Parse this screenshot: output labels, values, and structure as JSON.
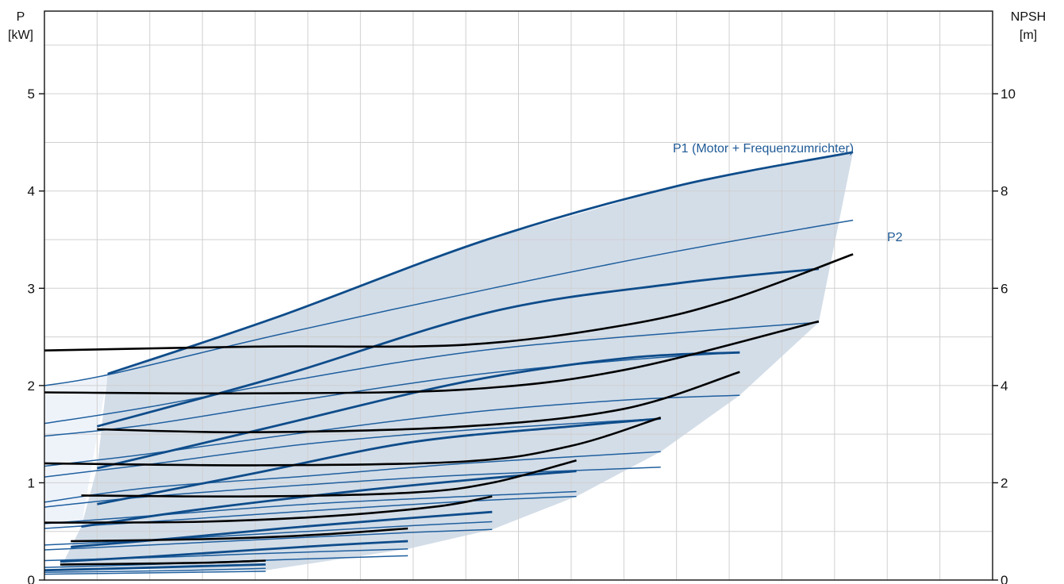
{
  "chart_data": {
    "type": "line",
    "title": "",
    "xlabel": "",
    "left_axis": {
      "label": "P",
      "unit": "[kW]",
      "ylim": [
        0,
        5.85
      ],
      "ticks": [
        "0",
        "1",
        "2",
        "3",
        "4",
        "5"
      ]
    },
    "right_axis": {
      "label": "NPSH",
      "unit": "[m]",
      "ylim": [
        0,
        11.7
      ],
      "ticks": [
        "0",
        "2",
        "4",
        "6",
        "8",
        "10"
      ]
    },
    "xlim": [
      0,
      18
    ],
    "grid": true,
    "legend": "none",
    "annotations": [
      "P1 (Motor + Frequenzumrichter)",
      "P2"
    ],
    "colors": {
      "p1": "#0e4c8a",
      "p2": "#1f5f9e",
      "npsh": "#000000",
      "region": "#d3dde8",
      "region_light": "#eef3fa",
      "grid": "#d0d0d0",
      "label": "#1f5a96"
    },
    "series": [
      {
        "group": "P1",
        "x": [
          1.2,
          4.4,
          8.4,
          12.0,
          15.35
        ],
        "values": [
          2.12,
          2.7,
          3.5,
          4.05,
          4.4
        ]
      },
      {
        "group": "P1",
        "x": [
          1.0,
          4.5,
          8.5,
          12.0,
          14.7
        ],
        "values": [
          1.58,
          2.1,
          2.76,
          3.05,
          3.2
        ]
      },
      {
        "group": "P1",
        "x": [
          1.0,
          4.2,
          8.0,
          11.0,
          13.2
        ],
        "values": [
          1.15,
          1.56,
          2.04,
          2.28,
          2.34
        ]
      },
      {
        "group": "P1",
        "x": [
          1.0,
          4.0,
          7.0,
          10.0,
          11.7
        ],
        "values": [
          0.78,
          1.1,
          1.42,
          1.58,
          1.66
        ]
      },
      {
        "group": "P1",
        "x": [
          0.7,
          3.0,
          6.0,
          8.5,
          10.1
        ],
        "values": [
          0.55,
          0.73,
          0.92,
          1.05,
          1.12
        ]
      },
      {
        "group": "P1",
        "x": [
          0.5,
          2.5,
          4.5,
          7.0,
          8.5
        ],
        "values": [
          0.34,
          0.43,
          0.53,
          0.64,
          0.7
        ]
      },
      {
        "group": "P1",
        "x": [
          0.3,
          2.0,
          4.0,
          5.5,
          6.9
        ],
        "values": [
          0.19,
          0.24,
          0.31,
          0.36,
          0.4
        ]
      },
      {
        "group": "P1",
        "x": [
          0.0,
          1.5,
          2.8,
          4.2
        ],
        "values": [
          0.1,
          0.12,
          0.14,
          0.16
        ]
      },
      {
        "group": "P2",
        "x": [
          0.0,
          1.2,
          4.5,
          8.5,
          12.0,
          15.35
        ],
        "values": [
          2.0,
          2.11,
          2.53,
          3.0,
          3.38,
          3.7
        ]
      },
      {
        "group": "P2",
        "x": [
          0.0,
          2.0,
          5.0,
          8.0,
          11.0,
          14.7
        ],
        "values": [
          1.61,
          1.78,
          2.08,
          2.34,
          2.5,
          2.65
        ]
      },
      {
        "group": "P2",
        "x": [
          0.0,
          2.0,
          5.0,
          8.0,
          11.0,
          13.2
        ],
        "values": [
          1.48,
          1.6,
          1.86,
          2.1,
          2.26,
          2.34
        ]
      },
      {
        "group": "P2",
        "x": [
          0.0,
          2.0,
          5.0,
          8.0,
          11.0,
          13.2
        ],
        "values": [
          1.17,
          1.3,
          1.52,
          1.72,
          1.85,
          1.9
        ]
      },
      {
        "group": "P2",
        "x": [
          0.0,
          2.0,
          5.0,
          8.0,
          11.7
        ],
        "values": [
          1.06,
          1.19,
          1.4,
          1.54,
          1.66
        ]
      },
      {
        "group": "P2",
        "x": [
          0.0,
          2.0,
          5.0,
          8.0,
          11.7
        ],
        "values": [
          0.8,
          0.95,
          1.07,
          1.2,
          1.32
        ]
      },
      {
        "group": "P2",
        "x": [
          0.0,
          2.0,
          5.0,
          8.0,
          11.7
        ],
        "values": [
          0.75,
          0.86,
          0.98,
          1.08,
          1.16
        ]
      },
      {
        "group": "P2",
        "x": [
          0.0,
          2.0,
          5.0,
          8.0,
          10.1
        ],
        "values": [
          0.58,
          0.66,
          0.78,
          0.86,
          0.91
        ]
      },
      {
        "group": "P2",
        "x": [
          0.0,
          2.0,
          5.0,
          8.0,
          10.1
        ],
        "values": [
          0.53,
          0.6,
          0.71,
          0.81,
          0.86
        ]
      },
      {
        "group": "P2",
        "x": [
          0.0,
          2.0,
          5.0,
          7.0,
          8.5
        ],
        "values": [
          0.36,
          0.41,
          0.5,
          0.56,
          0.6
        ]
      },
      {
        "group": "P2",
        "x": [
          0.0,
          2.0,
          5.0,
          7.0,
          8.5
        ],
        "values": [
          0.31,
          0.36,
          0.44,
          0.49,
          0.52
        ]
      },
      {
        "group": "P2",
        "x": [
          0.0,
          2.0,
          4.0,
          6.9
        ],
        "values": [
          0.2,
          0.23,
          0.27,
          0.32
        ]
      },
      {
        "group": "P2",
        "x": [
          0.0,
          2.0,
          4.0,
          6.9
        ],
        "values": [
          0.13,
          0.16,
          0.2,
          0.25
        ]
      },
      {
        "group": "P2",
        "x": [
          0.0,
          1.5,
          2.8,
          4.2
        ],
        "values": [
          0.08,
          0.09,
          0.1,
          0.12
        ]
      },
      {
        "group": "P2",
        "x": [
          0.0,
          1.5,
          2.8,
          4.2
        ],
        "values": [
          0.06,
          0.07,
          0.08,
          0.09
        ]
      },
      {
        "group": "NPSH",
        "x": [
          0.0,
          4.0,
          8.0,
          11.0,
          13.0,
          15.35
        ],
        "values": [
          2.36,
          2.4,
          2.42,
          2.62,
          2.88,
          3.35
        ]
      },
      {
        "group": "NPSH",
        "x": [
          0.0,
          4.0,
          8.0,
          11.0,
          14.7
        ],
        "values": [
          1.93,
          1.92,
          1.96,
          2.16,
          2.66
        ]
      },
      {
        "group": "NPSH",
        "x": [
          1.0,
          4.0,
          8.0,
          11.0,
          13.2
        ],
        "values": [
          1.55,
          1.52,
          1.58,
          1.76,
          2.14
        ]
      },
      {
        "group": "NPSH",
        "x": [
          0.0,
          4.0,
          8.0,
          10.0,
          11.7
        ],
        "values": [
          1.2,
          1.18,
          1.22,
          1.38,
          1.67
        ]
      },
      {
        "group": "NPSH",
        "x": [
          0.7,
          4.0,
          7.0,
          8.5,
          10.1
        ],
        "values": [
          0.87,
          0.86,
          0.9,
          1.0,
          1.23
        ]
      },
      {
        "group": "NPSH",
        "x": [
          0.0,
          3.0,
          5.5,
          7.5,
          8.5
        ],
        "values": [
          0.59,
          0.6,
          0.66,
          0.76,
          0.86
        ]
      },
      {
        "group": "NPSH",
        "x": [
          0.5,
          3.0,
          5.0,
          6.9
        ],
        "values": [
          0.4,
          0.42,
          0.46,
          0.53
        ]
      },
      {
        "group": "NPSH",
        "x": [
          0.3,
          2.0,
          3.2,
          4.2
        ],
        "values": [
          0.16,
          0.17,
          0.18,
          0.2
        ]
      }
    ],
    "operating_region": {
      "x": [
        1.2,
        4.4,
        8.4,
        12.0,
        15.35,
        14.7,
        13.2,
        11.7,
        10.1,
        8.5,
        6.9,
        4.2,
        0.3,
        0.7,
        1.0
      ],
      "values": [
        2.12,
        2.7,
        3.5,
        4.05,
        4.4,
        2.65,
        1.9,
        1.32,
        0.86,
        0.52,
        0.32,
        0.1,
        0.12,
        0.55,
        1.15
      ]
    },
    "low_speed_region": {
      "x": [
        0.0,
        1.2,
        0.7,
        0.0
      ],
      "values": [
        2.0,
        2.11,
        0.55,
        0.55
      ]
    }
  }
}
